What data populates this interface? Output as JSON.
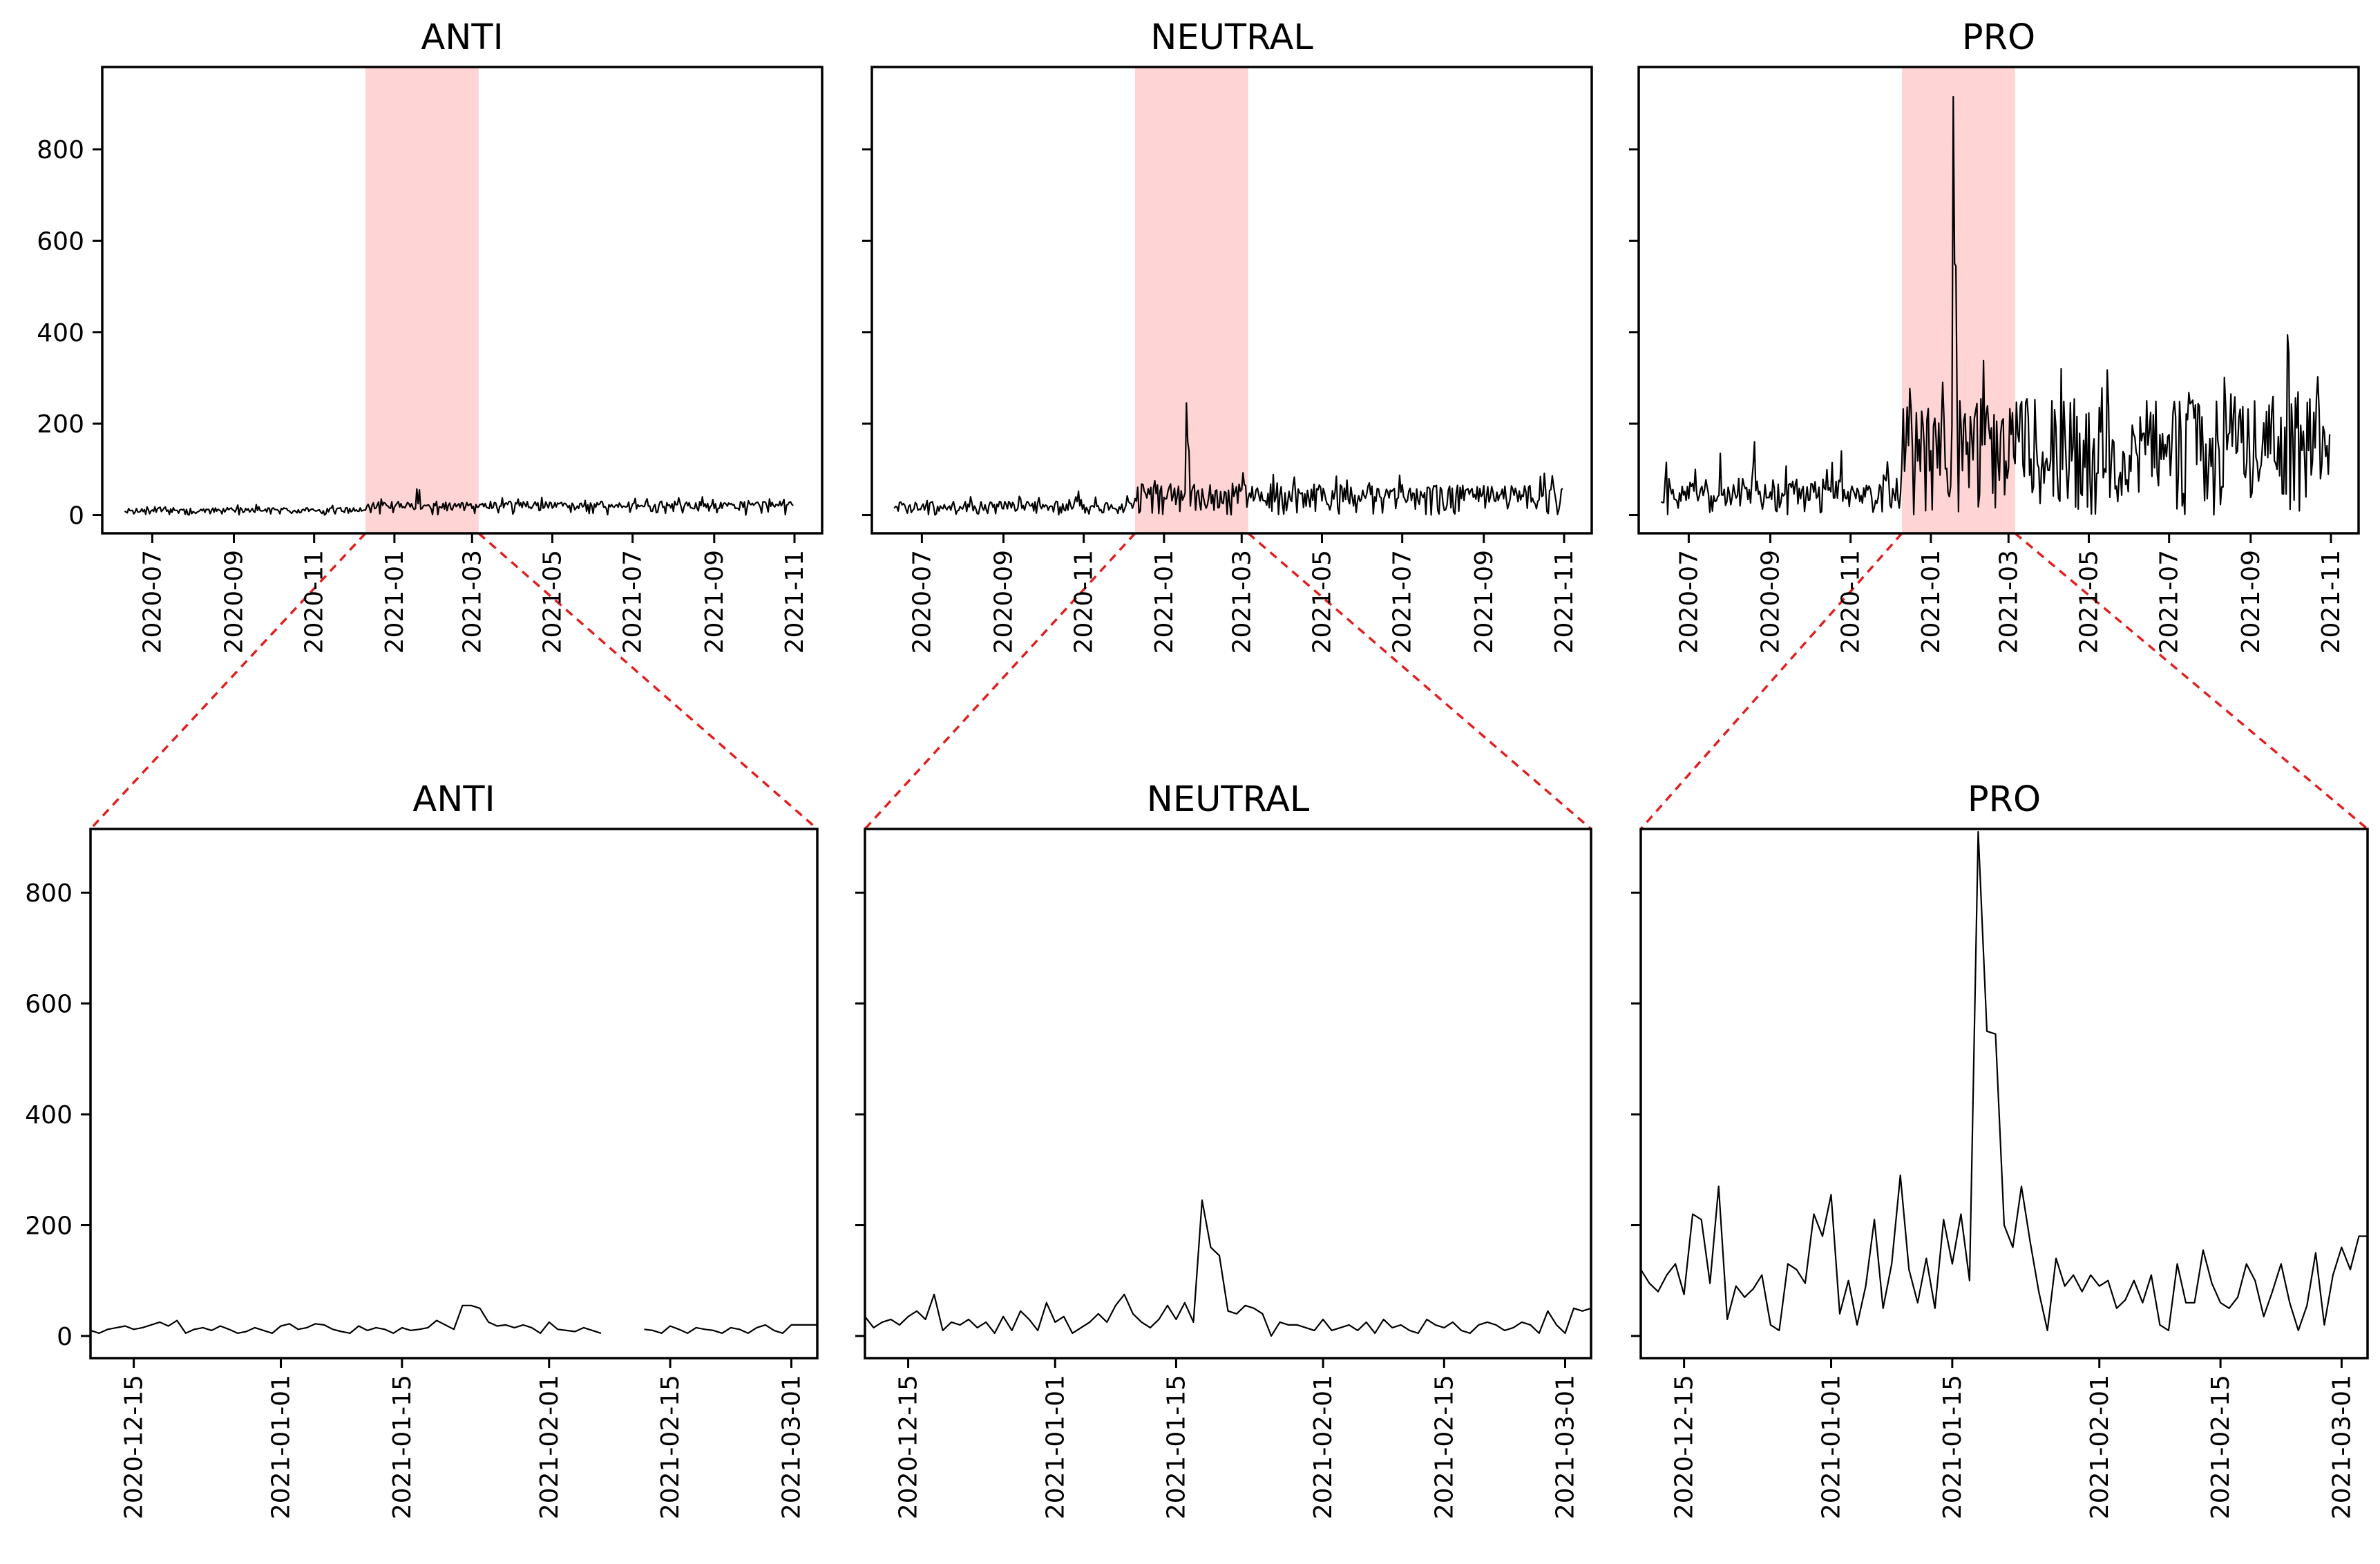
{
  "figure": {
    "description_colors": {
      "line": "#000000",
      "highlight": "#ffd4d4",
      "connector": "#e02020"
    }
  },
  "chart_data": [
    {
      "type": "line",
      "title": "ANTI",
      "panel": "overview",
      "xlim": [
        "2020-05-24",
        "2021-11-22"
      ],
      "ylim": [
        -40,
        980
      ],
      "highlight": [
        "2020-12-10",
        "2021-03-06"
      ],
      "yticks": [
        0,
        200,
        400,
        600,
        800
      ],
      "ytick_labels": [
        "0",
        "200",
        "400",
        "600",
        "800"
      ],
      "xticks": [
        "2020-07-01",
        "2020-09-01",
        "2020-11-01",
        "2021-01-01",
        "2021-03-01",
        "2021-05-01",
        "2021-07-01",
        "2021-09-01",
        "2021-11-01"
      ],
      "xtick_labels": [
        "2020-07",
        "2020-09",
        "2020-11",
        "2021-01",
        "2021-03",
        "2021-05",
        "2021-07",
        "2021-09",
        "2021-11"
      ],
      "series": [
        {
          "name": "ANTI",
          "segments": [
            {
              "start": "2020-06-10",
              "end": "2020-12-09",
              "base": 6,
              "spread": 10,
              "seed": 11,
              "spikes": []
            },
            {
              "start": "2020-12-10",
              "end": "2021-03-05",
              "base": 12,
              "spread": 18,
              "seed": 12,
              "spikes": [
                [
                  "2021-01-18",
                  57
                ],
                [
                  "2021-01-20",
                  55
                ]
              ]
            },
            {
              "start": "2021-03-06",
              "end": "2021-10-31",
              "base": 14,
              "spread": 16,
              "seed": 13,
              "spikes": [
                [
                  "2021-04-05",
                  35
                ]
              ]
            }
          ]
        }
      ]
    },
    {
      "type": "line",
      "title": "NEUTRAL",
      "panel": "overview",
      "xlim": [
        "2020-05-24",
        "2021-11-22"
      ],
      "ylim": [
        -40,
        980
      ],
      "highlight": [
        "2020-12-10",
        "2021-03-06"
      ],
      "yticks": [
        0,
        200,
        400,
        600,
        800
      ],
      "ytick_labels": [
        "",
        "",
        "",
        "",
        ""
      ],
      "xticks": [
        "2020-07-01",
        "2020-09-01",
        "2020-11-01",
        "2021-01-01",
        "2021-03-01",
        "2021-05-01",
        "2021-07-01",
        "2021-09-01",
        "2021-11-01"
      ],
      "xtick_labels": [
        "2020-07",
        "2020-09",
        "2020-11",
        "2021-01",
        "2021-03",
        "2021-05",
        "2021-07",
        "2021-09",
        "2021-11"
      ],
      "series": [
        {
          "name": "NEUTRAL",
          "segments": [
            {
              "start": "2020-06-10",
              "end": "2020-12-09",
              "base": 10,
              "spread": 20,
              "seed": 21,
              "spikes": [
                [
                  "2020-10-28",
                  52
                ]
              ]
            },
            {
              "start": "2020-12-10",
              "end": "2021-03-05",
              "base": 25,
              "spread": 45,
              "seed": 22,
              "spikes": [
                [
                  "2021-01-18",
                  245
                ],
                [
                  "2021-01-19",
                  160
                ],
                [
                  "2021-01-20",
                  140
                ],
                [
                  "2020-12-25",
                  75
                ]
              ]
            },
            {
              "start": "2021-03-06",
              "end": "2021-10-31",
              "base": 28,
              "spread": 38,
              "seed": 23,
              "spikes": [
                [
                  "2021-03-28",
                  70
                ]
              ]
            }
          ]
        }
      ]
    },
    {
      "type": "line",
      "title": "PRO",
      "panel": "overview",
      "xlim": [
        "2020-05-24",
        "2021-11-22"
      ],
      "ylim": [
        -40,
        980
      ],
      "highlight": [
        "2020-12-10",
        "2021-03-06"
      ],
      "yticks": [
        0,
        200,
        400,
        600,
        800
      ],
      "ytick_labels": [
        "",
        "",
        "",
        "",
        ""
      ],
      "xticks": [
        "2020-07-01",
        "2020-09-01",
        "2020-11-01",
        "2021-01-01",
        "2021-03-01",
        "2021-05-01",
        "2021-07-01",
        "2021-09-01",
        "2021-11-01"
      ],
      "xtick_labels": [
        "2020-07",
        "2020-09",
        "2020-11",
        "2021-01",
        "2021-03",
        "2021-05",
        "2021-07",
        "2021-09",
        "2021-11"
      ],
      "series": [
        {
          "name": "PRO",
          "segments": [
            {
              "start": "2020-06-10",
              "end": "2020-12-09",
              "base": 25,
              "spread": 55,
              "seed": 31,
              "spikes": [
                [
                  "2020-07-25",
                  135
                ],
                [
                  "2020-08-20",
                  160
                ],
                [
                  "2020-10-25",
                  140
                ]
              ]
            },
            {
              "start": "2020-12-10",
              "end": "2021-03-05",
              "base": 70,
              "spread": 190,
              "seed": 32,
              "spikes": [
                [
                  "2021-01-18",
                  915
                ],
                [
                  "2021-01-19",
                  550
                ],
                [
                  "2021-01-20",
                  545
                ],
                [
                  "2021-01-10",
                  290
                ]
              ]
            },
            {
              "start": "2021-03-06",
              "end": "2021-10-31",
              "base": 60,
              "spread": 210,
              "seed": 33,
              "spikes": [
                [
                  "2021-04-10",
                  320
                ]
              ]
            }
          ]
        }
      ]
    },
    {
      "type": "line",
      "title": "ANTI",
      "panel": "zoom",
      "xlim": [
        "2020-12-10",
        "2021-03-04"
      ],
      "ylim": [
        -40,
        915
      ],
      "yticks": [
        0,
        200,
        400,
        600,
        800
      ],
      "ytick_labels": [
        "0",
        "200",
        "400",
        "600",
        "800"
      ],
      "xticks": [
        "2020-12-15",
        "2021-01-01",
        "2021-01-15",
        "2021-02-01",
        "2021-02-15",
        "2021-03-01"
      ],
      "xtick_labels": [
        "2020-12-15",
        "2021-01-01",
        "2021-01-15",
        "2021-02-01",
        "2021-02-15",
        "2021-03-01"
      ],
      "series": [
        {
          "name": "ANTI",
          "x_start": "2020-12-10",
          "values": [
            10,
            5,
            12,
            15,
            18,
            12,
            15,
            20,
            25,
            18,
            28,
            5,
            12,
            15,
            10,
            18,
            12,
            5,
            8,
            15,
            10,
            5,
            18,
            22,
            12,
            15,
            22,
            20,
            12,
            8,
            5,
            18,
            10,
            15,
            12,
            5,
            15,
            10,
            12,
            15,
            28,
            20,
            12,
            55,
            55,
            50,
            25,
            18,
            20,
            15,
            20,
            15,
            5,
            25,
            12,
            10,
            8,
            15,
            10,
            5,
            null,
            null,
            null,
            null,
            12,
            10,
            5,
            18,
            12,
            5,
            15,
            12,
            10,
            5,
            15,
            12,
            5,
            15,
            20,
            10,
            5,
            20,
            20,
            20,
            20
          ]
        }
      ]
    },
    {
      "type": "line",
      "title": "NEUTRAL",
      "panel": "zoom",
      "xlim": [
        "2020-12-10",
        "2021-03-04"
      ],
      "ylim": [
        -40,
        915
      ],
      "yticks": [
        0,
        200,
        400,
        600,
        800
      ],
      "ytick_labels": [
        "",
        "",
        "",
        "",
        ""
      ],
      "xticks": [
        "2020-12-15",
        "2021-01-01",
        "2021-01-15",
        "2021-02-01",
        "2021-02-15",
        "2021-03-01"
      ],
      "xtick_labels": [
        "2020-12-15",
        "2021-01-01",
        "2021-01-15",
        "2021-02-01",
        "2021-02-15",
        "2021-03-01"
      ],
      "series": [
        {
          "name": "NEUTRAL",
          "x_start": "2020-12-10",
          "values": [
            35,
            15,
            25,
            30,
            20,
            35,
            45,
            30,
            75,
            10,
            25,
            20,
            30,
            15,
            25,
            5,
            35,
            10,
            45,
            30,
            10,
            60,
            25,
            35,
            5,
            15,
            25,
            40,
            25,
            55,
            75,
            40,
            25,
            15,
            30,
            55,
            30,
            60,
            25,
            245,
            160,
            145,
            45,
            40,
            55,
            50,
            40,
            0,
            25,
            20,
            20,
            15,
            10,
            30,
            10,
            15,
            20,
            10,
            25,
            5,
            30,
            15,
            20,
            10,
            5,
            30,
            20,
            15,
            25,
            10,
            5,
            20,
            25,
            20,
            10,
            15,
            25,
            20,
            5,
            45,
            20,
            5,
            50,
            45,
            50
          ]
        }
      ]
    },
    {
      "type": "line",
      "title": "PRO",
      "panel": "zoom",
      "xlim": [
        "2020-12-10",
        "2021-03-04"
      ],
      "ylim": [
        -40,
        915
      ],
      "yticks": [
        0,
        200,
        400,
        600,
        800
      ],
      "ytick_labels": [
        "",
        "",
        "",
        "",
        ""
      ],
      "xticks": [
        "2020-12-15",
        "2021-01-01",
        "2021-01-15",
        "2021-02-01",
        "2021-02-15",
        "2021-03-01"
      ],
      "xtick_labels": [
        "2020-12-15",
        "2021-01-01",
        "2021-01-15",
        "2021-02-01",
        "2021-02-15",
        "2021-03-01"
      ],
      "series": [
        {
          "name": "PRO",
          "x_start": "2020-12-10",
          "values": [
            120,
            95,
            80,
            110,
            130,
            75,
            220,
            210,
            95,
            270,
            30,
            90,
            70,
            85,
            110,
            20,
            10,
            130,
            120,
            95,
            220,
            180,
            255,
            40,
            100,
            20,
            90,
            210,
            50,
            130,
            290,
            120,
            60,
            140,
            50,
            210,
            130,
            220,
            100,
            910,
            550,
            545,
            200,
            160,
            270,
            170,
            80,
            10,
            140,
            90,
            110,
            80,
            110,
            90,
            100,
            50,
            65,
            100,
            60,
            110,
            20,
            10,
            130,
            60,
            60,
            155,
            95,
            60,
            50,
            70,
            130,
            100,
            35,
            80,
            130,
            60,
            10,
            55,
            150,
            20,
            110,
            160,
            120,
            180,
            180
          ]
        }
      ]
    }
  ]
}
